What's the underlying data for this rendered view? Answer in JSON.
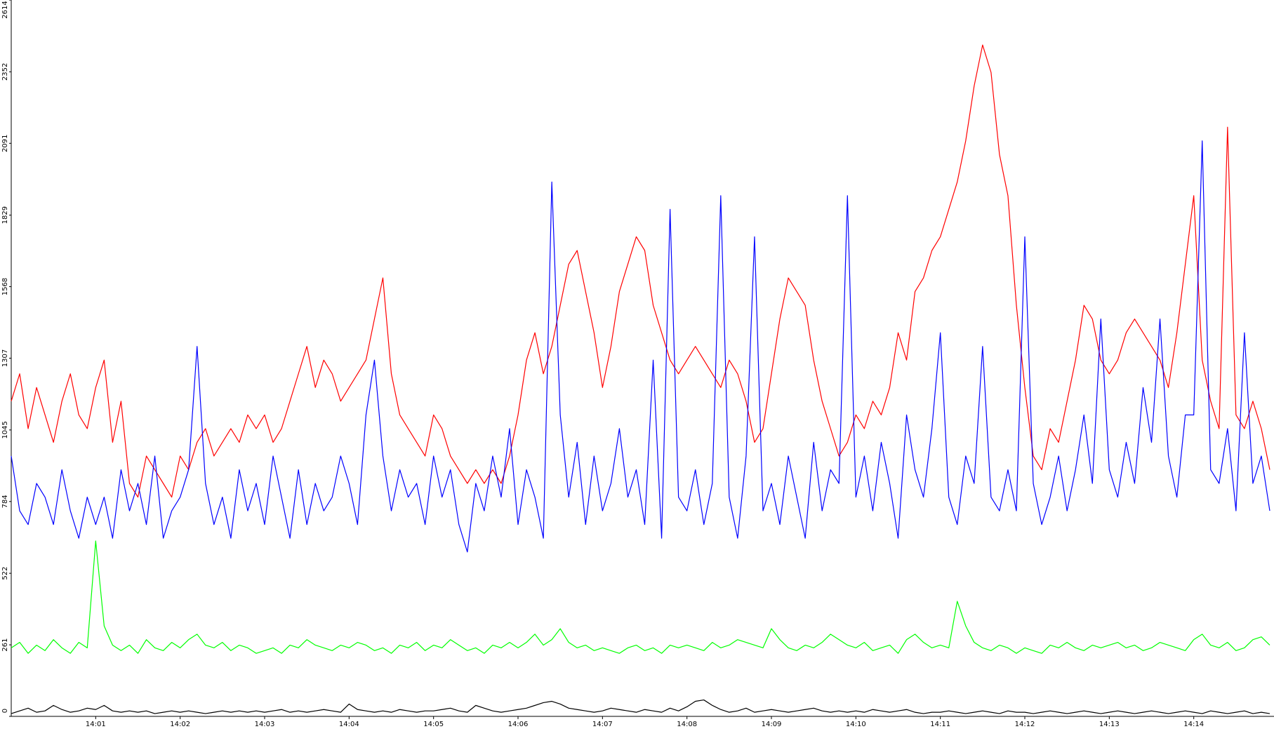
{
  "chart_data": {
    "type": "line",
    "x": [
      0,
      0.1,
      0.2,
      0.3,
      0.4,
      0.5,
      0.6,
      0.7,
      0.8,
      0.9,
      1,
      1.1,
      1.2,
      1.3,
      1.4,
      1.5,
      1.6,
      1.7,
      1.8,
      1.9,
      2,
      2.1,
      2.2,
      2.3,
      2.4,
      2.5,
      2.6,
      2.7,
      2.8,
      2.9,
      3,
      3.1,
      3.2,
      3.3,
      3.4,
      3.5,
      3.6,
      3.7,
      3.8,
      3.9,
      4,
      4.1,
      4.2,
      4.3,
      4.4,
      4.5,
      4.6,
      4.7,
      4.8,
      4.9,
      5,
      5.1,
      5.2,
      5.3,
      5.4,
      5.5,
      5.6,
      5.7,
      5.8,
      5.9,
      6,
      6.1,
      6.2,
      6.3,
      6.4,
      6.5,
      6.6,
      6.7,
      6.8,
      6.9,
      7,
      7.1,
      7.2,
      7.3,
      7.4,
      7.5,
      7.6,
      7.7,
      7.8,
      7.9,
      8,
      8.1,
      8.2,
      8.3,
      8.4,
      8.5,
      8.6,
      8.7,
      8.8,
      8.9,
      9,
      9.1,
      9.2,
      9.3,
      9.4,
      9.5,
      9.6,
      9.7,
      9.8,
      9.9,
      10,
      10.1,
      10.2,
      10.3,
      10.4,
      10.5,
      10.6,
      10.7,
      10.8,
      10.9,
      11,
      11.1,
      11.2,
      11.3,
      11.4,
      11.5,
      11.6,
      11.7,
      11.8,
      11.9,
      12,
      12.1,
      12.2,
      12.3,
      12.4,
      12.5,
      12.6,
      12.7,
      12.8,
      12.9,
      13,
      13.1,
      13.2,
      13.3,
      13.4,
      13.5,
      13.6,
      13.7,
      13.8,
      13.9,
      14,
      14.1,
      14.2,
      14.3,
      14.4,
      14.5,
      14.6,
      14.7,
      14.8,
      14.9
    ],
    "series": [
      {
        "color": "#ff0000",
        "values": [
          1150,
          1250,
          1050,
          1200,
          1100,
          1000,
          1150,
          1250,
          1100,
          1050,
          1200,
          1300,
          1000,
          1150,
          850,
          800,
          950,
          900,
          850,
          800,
          950,
          900,
          1000,
          1050,
          950,
          1000,
          1050,
          1000,
          1100,
          1050,
          1100,
          1000,
          1050,
          1150,
          1250,
          1350,
          1200,
          1300,
          1250,
          1150,
          1200,
          1250,
          1300,
          1450,
          1600,
          1250,
          1100,
          1050,
          1000,
          950,
          1100,
          1050,
          950,
          900,
          850,
          900,
          850,
          900,
          850,
          950,
          1100,
          1300,
          1400,
          1250,
          1350,
          1500,
          1650,
          1700,
          1550,
          1400,
          1200,
          1350,
          1550,
          1650,
          1750,
          1700,
          1500,
          1400,
          1300,
          1250,
          1300,
          1350,
          1300,
          1250,
          1200,
          1300,
          1250,
          1150,
          1000,
          1050,
          1250,
          1450,
          1600,
          1550,
          1500,
          1300,
          1150,
          1050,
          950,
          1000,
          1100,
          1050,
          1150,
          1100,
          1200,
          1400,
          1300,
          1550,
          1600,
          1700,
          1750,
          1850,
          1950,
          2100,
          2300,
          2450,
          2350,
          2050,
          1900,
          1500,
          1200,
          950,
          900,
          1050,
          1000,
          1150,
          1300,
          1500,
          1450,
          1300,
          1250,
          1300,
          1400,
          1450,
          1400,
          1350,
          1300,
          1200,
          1400,
          1650,
          1900,
          1300,
          1150,
          1050,
          2150,
          1100,
          1050,
          1150,
          1050,
          900
        ]
      },
      {
        "color": "#0000ff",
        "values": [
          950,
          750,
          700,
          850,
          800,
          700,
          900,
          750,
          650,
          800,
          700,
          800,
          650,
          900,
          750,
          850,
          700,
          950,
          650,
          750,
          800,
          900,
          1350,
          850,
          700,
          800,
          650,
          900,
          750,
          850,
          700,
          950,
          800,
          650,
          900,
          700,
          850,
          750,
          800,
          950,
          850,
          700,
          1100,
          1300,
          950,
          750,
          900,
          800,
          850,
          700,
          950,
          800,
          900,
          700,
          600,
          850,
          750,
          950,
          800,
          1050,
          700,
          900,
          800,
          650,
          1950,
          1100,
          800,
          1000,
          700,
          950,
          750,
          850,
          1050,
          800,
          900,
          700,
          1300,
          650,
          1850,
          800,
          750,
          900,
          700,
          850,
          1900,
          800,
          650,
          950,
          1750,
          750,
          850,
          700,
          950,
          800,
          650,
          1000,
          750,
          900,
          850,
          1900,
          800,
          950,
          750,
          1000,
          850,
          650,
          1100,
          900,
          800,
          1050,
          1400,
          800,
          700,
          950,
          850,
          1350,
          800,
          750,
          900,
          750,
          1750,
          850,
          700,
          800,
          950,
          750,
          900,
          1100,
          850,
          1450,
          900,
          800,
          1000,
          850,
          1200,
          1000,
          1450,
          950,
          800,
          1100,
          1100,
          2100,
          900,
          850,
          1050,
          750,
          1400,
          850,
          950,
          750
        ]
      },
      {
        "color": "#00ff00",
        "values": [
          250,
          270,
          230,
          260,
          240,
          280,
          250,
          230,
          270,
          250,
          640,
          330,
          260,
          240,
          260,
          230,
          280,
          250,
          240,
          270,
          250,
          280,
          300,
          260,
          250,
          270,
          240,
          260,
          250,
          230,
          240,
          250,
          230,
          260,
          250,
          280,
          260,
          250,
          240,
          260,
          250,
          270,
          260,
          240,
          250,
          230,
          260,
          250,
          270,
          240,
          260,
          250,
          280,
          260,
          240,
          250,
          230,
          260,
          250,
          270,
          250,
          270,
          300,
          260,
          280,
          320,
          270,
          250,
          260,
          240,
          250,
          240,
          230,
          250,
          260,
          240,
          250,
          230,
          260,
          250,
          260,
          250,
          240,
          270,
          250,
          260,
          280,
          270,
          260,
          250,
          320,
          280,
          250,
          240,
          260,
          250,
          270,
          300,
          280,
          260,
          250,
          270,
          240,
          250,
          260,
          230,
          280,
          300,
          270,
          250,
          260,
          250,
          420,
          330,
          270,
          250,
          240,
          260,
          250,
          230,
          250,
          240,
          230,
          260,
          250,
          270,
          250,
          240,
          260,
          250,
          260,
          270,
          250,
          260,
          240,
          250,
          270,
          260,
          250,
          240,
          280,
          300,
          260,
          250,
          270,
          240,
          250,
          280,
          290,
          260
        ]
      },
      {
        "color": "#000000",
        "values": [
          10,
          20,
          30,
          15,
          20,
          40,
          25,
          15,
          20,
          30,
          25,
          40,
          20,
          15,
          20,
          15,
          20,
          10,
          15,
          20,
          15,
          20,
          15,
          10,
          15,
          20,
          15,
          20,
          15,
          20,
          15,
          20,
          25,
          15,
          20,
          15,
          20,
          25,
          20,
          15,
          45,
          25,
          20,
          15,
          20,
          15,
          25,
          20,
          15,
          20,
          20,
          25,
          30,
          20,
          15,
          40,
          30,
          20,
          15,
          20,
          25,
          30,
          40,
          50,
          55,
          45,
          30,
          25,
          20,
          15,
          20,
          30,
          25,
          20,
          15,
          25,
          20,
          15,
          30,
          20,
          35,
          55,
          60,
          40,
          25,
          15,
          20,
          30,
          15,
          20,
          25,
          20,
          15,
          20,
          25,
          30,
          20,
          15,
          20,
          15,
          20,
          15,
          25,
          20,
          15,
          20,
          25,
          15,
          10,
          15,
          15,
          20,
          15,
          10,
          15,
          20,
          15,
          10,
          20,
          15,
          15,
          10,
          15,
          20,
          15,
          10,
          15,
          20,
          15,
          10,
          15,
          20,
          15,
          10,
          15,
          20,
          15,
          10,
          15,
          20,
          15,
          10,
          20,
          15,
          10,
          15,
          20,
          10,
          15,
          10
        ]
      }
    ],
    "xlim": [
      0,
      14.95
    ],
    "xticks": [
      {
        "value": 1,
        "label": "14:01"
      },
      {
        "value": 2,
        "label": "14:02"
      },
      {
        "value": 3,
        "label": "14:03"
      },
      {
        "value": 4,
        "label": "14:04"
      },
      {
        "value": 5,
        "label": "14:05"
      },
      {
        "value": 6,
        "label": "14:06"
      },
      {
        "value": 7,
        "label": "14:07"
      },
      {
        "value": 8,
        "label": "14:08"
      },
      {
        "value": 9,
        "label": "14:09"
      },
      {
        "value": 10,
        "label": "14:10"
      },
      {
        "value": 11,
        "label": "14:11"
      },
      {
        "value": 12,
        "label": "14:12"
      },
      {
        "value": 13,
        "label": "14:13"
      },
      {
        "value": 14,
        "label": "14:14"
      }
    ],
    "ylim": [
      0,
      2614
    ],
    "yticks": [
      0,
      261,
      522,
      784,
      1045,
      1307,
      1568,
      1829,
      2091,
      2352,
      2614
    ]
  }
}
